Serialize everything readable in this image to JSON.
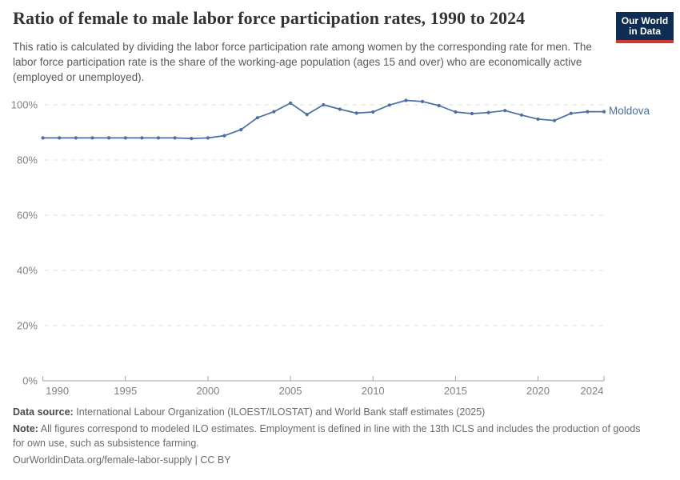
{
  "header": {
    "title": "Ratio of female to male labor force participation rates, 1990 to 2024",
    "subtitle": "This ratio is calculated by dividing the labor force participation rate among women by the corresponding rate for men. The labor force participation rate is the share of the working-age population (ages 15 and over) who are economically active (employed or unemployed).",
    "logo": {
      "line1": "Our World",
      "line2": "in Data",
      "bg_color": "#0f2d52",
      "stripe_color": "#d13832"
    }
  },
  "chart_data": {
    "type": "line",
    "title": "Ratio of female to male labor force participation rates, 1990 to 2024",
    "x": [
      1990,
      1991,
      1992,
      1993,
      1994,
      1995,
      1996,
      1997,
      1998,
      1999,
      2000,
      2001,
      2002,
      2003,
      2004,
      2005,
      2006,
      2007,
      2008,
      2009,
      2010,
      2011,
      2012,
      2013,
      2014,
      2015,
      2016,
      2017,
      2018,
      2019,
      2020,
      2021,
      2022,
      2023,
      2024
    ],
    "series": [
      {
        "name": "Moldova",
        "color": "#4c6ea3",
        "values": [
          88,
          88,
          88,
          88,
          88,
          88,
          88,
          88,
          88,
          87.8,
          88,
          88.8,
          91,
          95.3,
          97.5,
          100.6,
          96.5,
          100,
          98.4,
          97,
          97.4,
          99.9,
          101.6,
          101.2,
          99.7,
          97.4,
          96.8,
          97.2,
          97.9,
          96.3,
          94.8,
          94.3,
          96.9,
          97.5,
          97.5
        ]
      }
    ],
    "xlabel": "",
    "ylabel": "",
    "ylim": [
      0,
      100
    ],
    "yticks": [
      0,
      20,
      40,
      60,
      80,
      100
    ],
    "ytick_labels": [
      "0%",
      "20%",
      "40%",
      "60%",
      "80%",
      "100%"
    ],
    "xticks": [
      1990,
      1995,
      2000,
      2005,
      2010,
      2015,
      2020,
      2024
    ],
    "grid": "horizontal-dashed",
    "legend_position": "end-of-line-label",
    "marker": "circle"
  },
  "footer": {
    "data_source_label": "Data source:",
    "data_source_text": "International Labour Organization (ILOEST/ILOSTAT) and World Bank staff estimates (2025)",
    "note_label": "Note:",
    "note_text": "All figures correspond to modeled ILO estimates. Employment is defined in line with the 13th ICLS and includes the production of goods for own use, such as subsistence farming.",
    "citation": "OurWorldinData.org/female-labor-supply | CC BY"
  }
}
